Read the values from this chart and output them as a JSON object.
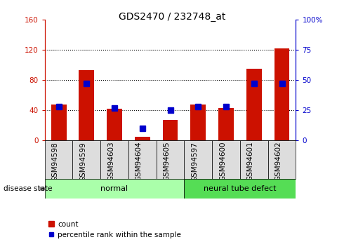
{
  "title": "GDS2470 / 232748_at",
  "samples": [
    "GSM94598",
    "GSM94599",
    "GSM94603",
    "GSM94604",
    "GSM94605",
    "GSM94597",
    "GSM94600",
    "GSM94601",
    "GSM94602"
  ],
  "counts": [
    47,
    93,
    42,
    5,
    27,
    47,
    43,
    95,
    122
  ],
  "percentiles": [
    28,
    47,
    27,
    10,
    25,
    28,
    28,
    47,
    47
  ],
  "groups": [
    {
      "label": "normal",
      "start": 0,
      "end": 5,
      "color": "#AAFFAA"
    },
    {
      "label": "neural tube defect",
      "start": 5,
      "end": 9,
      "color": "#55DD55"
    }
  ],
  "left_ylim": [
    0,
    160
  ],
  "right_ylim": [
    0,
    100
  ],
  "left_yticks": [
    0,
    40,
    80,
    120,
    160
  ],
  "right_yticks": [
    0,
    25,
    50,
    75,
    100
  ],
  "left_yticklabels": [
    "0",
    "40",
    "80",
    "120",
    "160"
  ],
  "right_yticklabels": [
    "0",
    "25",
    "50",
    "75",
    "100%"
  ],
  "bar_color": "#CC1100",
  "marker_color": "#0000CC",
  "bar_width": 0.55,
  "marker_size": 6,
  "disease_state_label": "disease state",
  "legend_count": "count",
  "legend_percentile": "percentile rank within the sample",
  "group_label_fontsize": 8,
  "tick_label_fontsize": 7.5,
  "title_fontsize": 10,
  "axis_color_left": "#CC1100",
  "axis_color_right": "#0000CC",
  "plot_bg": "#FFFFFF",
  "tick_bg": "#DDDDDD",
  "grid_color": "black"
}
